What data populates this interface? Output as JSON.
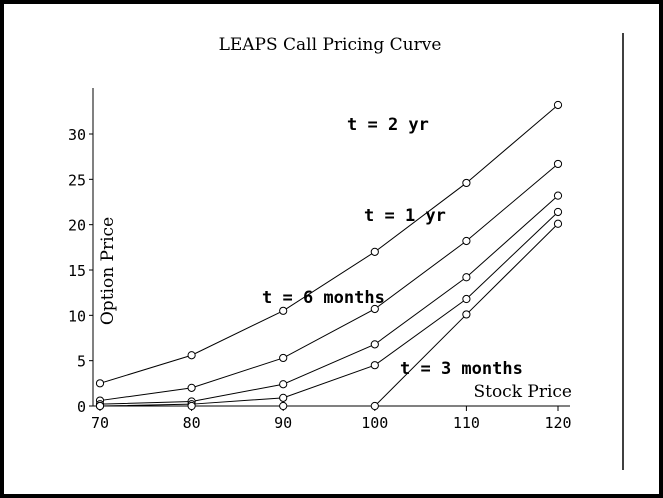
{
  "chart_data": {
    "type": "line",
    "title": "LEAPS Call Pricing Curve",
    "xlabel": "Stock Price",
    "ylabel": "Option Price",
    "x": [
      70,
      80,
      90,
      100,
      110,
      120
    ],
    "xlim": [
      70,
      120
    ],
    "ylim": [
      0,
      35
    ],
    "xticks": [
      "70",
      "80",
      "90",
      "100",
      "110",
      "120"
    ],
    "yticks": [
      "0",
      "5",
      "10",
      "15",
      "20",
      "25",
      "30"
    ],
    "grid": false,
    "marker": "circle",
    "series": [
      {
        "name": "t = 2 yr",
        "values": [
          2.5,
          5.6,
          10.5,
          17.0,
          24.6,
          33.2
        ]
      },
      {
        "name": "t = 1 yr",
        "values": [
          0.6,
          2.0,
          5.3,
          10.7,
          18.2,
          26.7
        ]
      },
      {
        "name": "t = 6 months",
        "values": [
          0.2,
          0.5,
          2.4,
          6.8,
          14.2,
          23.2
        ]
      },
      {
        "name": "",
        "values": [
          0.0,
          0.2,
          0.9,
          4.5,
          11.8,
          21.4
        ]
      },
      {
        "name": "t = 3 months",
        "values": [
          0.0,
          0.0,
          0.0,
          0.0,
          10.1,
          20.1
        ]
      }
    ],
    "annotations": [
      {
        "text": "t = 2 yr",
        "series": 0
      },
      {
        "text": "t = 1 yr",
        "series": 1
      },
      {
        "text": "t = 6 months",
        "series": 2
      },
      {
        "text": "t = 3 months",
        "series": 4
      }
    ]
  }
}
